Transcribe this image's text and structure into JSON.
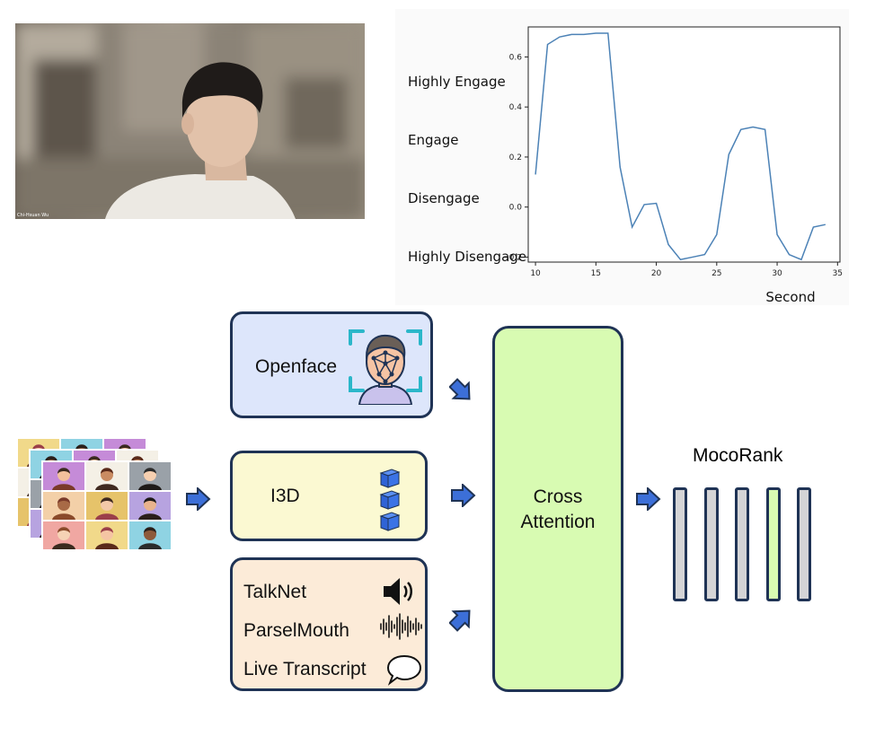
{
  "chart": {
    "engagement_levels": [
      "Highly Engage",
      "Engage",
      "Disengage",
      "Highly Disengage"
    ],
    "xlabel": "Second"
  },
  "chart_data": {
    "type": "line",
    "title": "",
    "xlabel": "Second",
    "ylabel": "",
    "xlim": [
      9.4,
      35.2
    ],
    "ylim": [
      -0.22,
      0.72
    ],
    "xticks": [
      10,
      15,
      20,
      25,
      30,
      35
    ],
    "yticks": [
      -0.2,
      0.0,
      0.2,
      0.4,
      0.6
    ],
    "xtick_labels": [
      "10",
      "15",
      "20",
      "25",
      "30",
      "35"
    ],
    "ytick_labels": [
      "−0.2",
      "0.0",
      "0.2",
      "0.4",
      "0.6"
    ],
    "grid": false,
    "series": [
      {
        "color": "#4c82b6",
        "x": [
          10,
          11,
          12,
          13,
          14,
          15,
          16,
          17,
          18,
          19,
          20,
          21,
          22,
          23,
          24,
          25,
          26,
          27,
          28,
          29,
          30,
          31,
          32,
          33,
          34
        ],
        "y": [
          0.13,
          0.65,
          0.68,
          0.69,
          0.69,
          0.695,
          0.695,
          0.16,
          -0.08,
          0.01,
          0.015,
          -0.15,
          -0.21,
          -0.2,
          -0.19,
          -0.11,
          0.21,
          0.31,
          0.32,
          0.31,
          -0.11,
          -0.19,
          -0.21,
          -0.08,
          -0.07
        ]
      }
    ]
  },
  "diagram": {
    "openface_label": "Openface",
    "i3d_label": "I3D",
    "talknet_label": "TalkNet",
    "parselmouth_label": "ParselMouth",
    "transcript_label": "Live Transcript",
    "cross_attention_line1": "Cross",
    "cross_attention_line2": "Attention",
    "mocorank_label": "MocoRank",
    "highlight_color": "#d8fbb2",
    "box_border_color": "#1f3355",
    "arrow_color": "#3c6fd8"
  }
}
